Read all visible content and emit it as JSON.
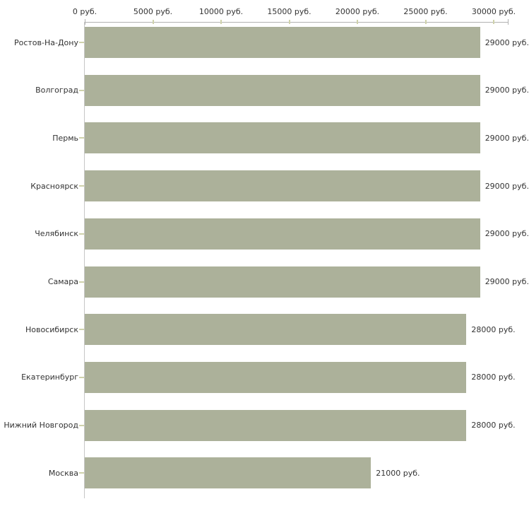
{
  "chart_data": {
    "type": "bar",
    "orientation": "horizontal",
    "title": "",
    "xlabel": "",
    "ylabel": "",
    "unit": "руб.",
    "xlim": [
      0,
      30000
    ],
    "grid": false,
    "legend": null,
    "categories": [
      "Ростов-На-Дону",
      "Волгоград",
      "Пермь",
      "Красноярск",
      "Челябинск",
      "Самара",
      "Новосибирск",
      "Екатеринбург",
      "Нижний Новгород",
      "Москва"
    ],
    "values": [
      29000,
      29000,
      29000,
      29000,
      29000,
      29000,
      28000,
      28000,
      28000,
      21000
    ],
    "value_labels": [
      "29000 руб.",
      "29000 руб.",
      "29000 руб.",
      "29000 руб.",
      "29000 руб.",
      "29000 руб.",
      "28000 руб.",
      "28000 руб.",
      "28000 руб.",
      "21000 руб."
    ],
    "x_ticks": [
      {
        "value": 0,
        "label": "0 руб."
      },
      {
        "value": 5000,
        "label": "5000 руб."
      },
      {
        "value": 10000,
        "label": "10000 руб."
      },
      {
        "value": 15000,
        "label": "15000 руб."
      },
      {
        "value": 20000,
        "label": "20000 руб."
      },
      {
        "value": 25000,
        "label": "25000 руб."
      },
      {
        "value": 30000,
        "label": "30000 руб."
      }
    ],
    "colors": {
      "bar": "#acb19a",
      "axis": "#b1b1b1",
      "minor_tick": "#cfd2ab",
      "text": "#333333",
      "background": "#ffffff"
    }
  }
}
